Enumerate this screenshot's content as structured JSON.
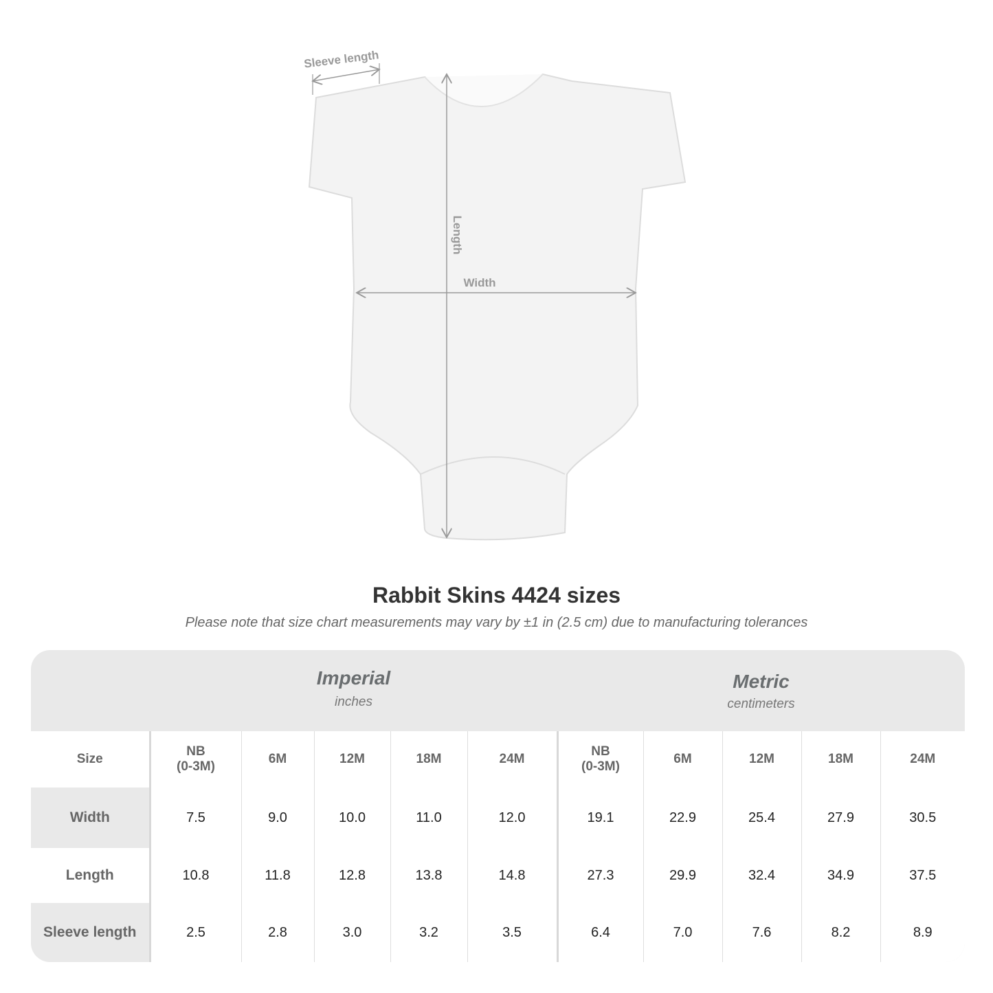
{
  "diagram": {
    "sleeve_label": "Sleeve length",
    "length_label": "Length",
    "width_label": "Width"
  },
  "title": "Rabbit Skins 4424 sizes",
  "note": "Please note that size chart measurements may vary by ±1 in (2.5 cm) due to manufacturing tolerances",
  "table": {
    "imperial": {
      "name": "Imperial",
      "unit": "inches"
    },
    "metric": {
      "name": "Metric",
      "unit": "centimeters"
    },
    "size_label": "Size",
    "sizes": [
      "NB\n(0-3M)",
      "6M",
      "12M",
      "18M",
      "24M",
      "NB\n(0-3M)",
      "6M",
      "12M",
      "18M",
      "24M"
    ],
    "rows": [
      {
        "label": "Width",
        "values": [
          "7.5",
          "9.0",
          "10.0",
          "11.0",
          "12.0",
          "19.1",
          "22.9",
          "25.4",
          "27.9",
          "30.5"
        ]
      },
      {
        "label": "Length",
        "values": [
          "10.8",
          "11.8",
          "12.8",
          "13.8",
          "14.8",
          "27.3",
          "29.9",
          "32.4",
          "34.9",
          "37.5"
        ]
      },
      {
        "label": "Sleeve length",
        "values": [
          "2.5",
          "2.8",
          "3.0",
          "3.2",
          "3.5",
          "6.4",
          "7.0",
          "7.6",
          "8.2",
          "8.9"
        ]
      }
    ]
  }
}
